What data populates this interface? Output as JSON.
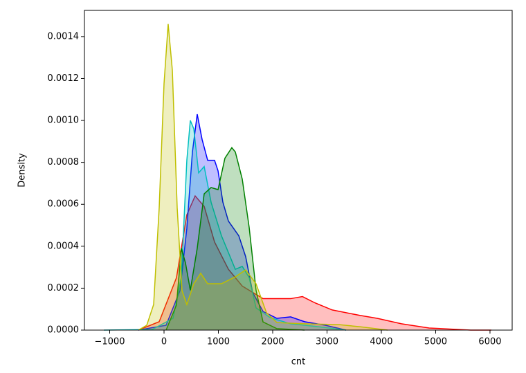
{
  "chart_data": {
    "type": "kde",
    "x_label": "cnt",
    "y_label": "Density",
    "xlim": [
      -1465,
      6408
    ],
    "ylim": [
      0,
      0.001525
    ],
    "xticks": [
      {
        "value": -1000,
        "label": "−1000"
      },
      0,
      1000,
      2000,
      3000,
      4000,
      5000,
      6000
    ],
    "yticks": [
      {
        "value": 0,
        "label": "0.0000"
      },
      {
        "value": 0.0002,
        "label": "0.0002"
      },
      {
        "value": 0.0004,
        "label": "0.0004"
      },
      {
        "value": 0.0006,
        "label": "0.0006"
      },
      {
        "value": 0.0008,
        "label": "0.0008"
      },
      {
        "value": 0.001,
        "label": "0.0010"
      },
      {
        "value": 0.0012,
        "label": "0.0012"
      },
      {
        "value": 0.0014,
        "label": "0.0014"
      }
    ],
    "fill": true,
    "series": [
      {
        "color": "#ff0000",
        "x": [
          -471,
          -89,
          229,
          420,
          573,
          739,
          930,
          1185,
          1440,
          1822,
          2077,
          2331,
          2548,
          2777,
          3096,
          3605,
          3924,
          4370,
          4879,
          5644,
          6026
        ],
        "values": [
          0,
          4e-05,
          0.00025,
          0.00055,
          0.00064,
          0.00059,
          0.00042,
          0.00029,
          0.00021,
          0.00015,
          0.00015,
          0.00015,
          0.00016,
          0.00013,
          9.6e-05,
          7e-05,
          5.6e-05,
          3e-05,
          1e-05,
          0,
          0
        ]
      },
      {
        "color": "#0000ff",
        "x": [
          -471,
          38,
          293,
          420,
          522,
          611,
          700,
          803,
          930,
          994,
          1083,
          1185,
          1376,
          1503,
          1631,
          1822,
          2077,
          2331,
          2586,
          2968,
          3351
        ],
        "values": [
          0,
          2.3e-05,
          0.000188,
          0.000485,
          0.000848,
          0.00103,
          0.00091,
          0.00081,
          0.00081,
          0.00076,
          0.00061,
          0.00052,
          0.00045,
          0.00035,
          0.00018,
          8.9e-05,
          5.6e-05,
          6.3e-05,
          4e-05,
          2.3e-05,
          0
        ]
      },
      {
        "color": "#00bfbf",
        "x": [
          -1108,
          -217,
          166,
          319,
          420,
          484,
          548,
          637,
          739,
          866,
          1057,
          1312,
          1440,
          1567,
          1694,
          1949,
          2331,
          2841,
          3351
        ],
        "values": [
          0,
          3e-06,
          5.6e-05,
          0.000254,
          0.00081,
          0.001,
          0.00096,
          0.00075,
          0.00078,
          0.00061,
          0.00045,
          0.00029,
          0.000304,
          0.00025,
          0.000106,
          6e-05,
          3e-05,
          1.6e-05,
          0
        ]
      },
      {
        "color": "#008000",
        "x": [
          38,
          229,
          319,
          395,
          484,
          611,
          739,
          866,
          994,
          1121,
          1248,
          1312,
          1440,
          1567,
          1694,
          1822,
          2077,
          2586
        ],
        "values": [
          0,
          0.00012,
          0.00039,
          0.00032,
          0.00019,
          0.00039,
          0.00065,
          0.00068,
          0.00067,
          0.00082,
          0.00087,
          0.00085,
          0.00072,
          0.00049,
          0.00019,
          3.9e-05,
          7e-06,
          0
        ]
      },
      {
        "color": "#bfbf00",
        "x": [
          -471,
          -318,
          -191,
          -89,
          0,
          76,
          153,
          242,
          331,
          420,
          548,
          675,
          803,
          1057,
          1312,
          1503,
          1694,
          1885,
          2077,
          2586,
          3223,
          3605,
          4115
        ],
        "values": [
          0,
          2.3e-05,
          0.000122,
          0.000584,
          0.001175,
          0.00146,
          0.00124,
          0.000584,
          0.000188,
          0.000122,
          0.000221,
          0.000271,
          0.000221,
          0.000221,
          0.000254,
          0.000287,
          0.000221,
          8.3e-05,
          3.6e-05,
          3e-05,
          2.6e-05,
          1.6e-05,
          0
        ]
      }
    ]
  }
}
